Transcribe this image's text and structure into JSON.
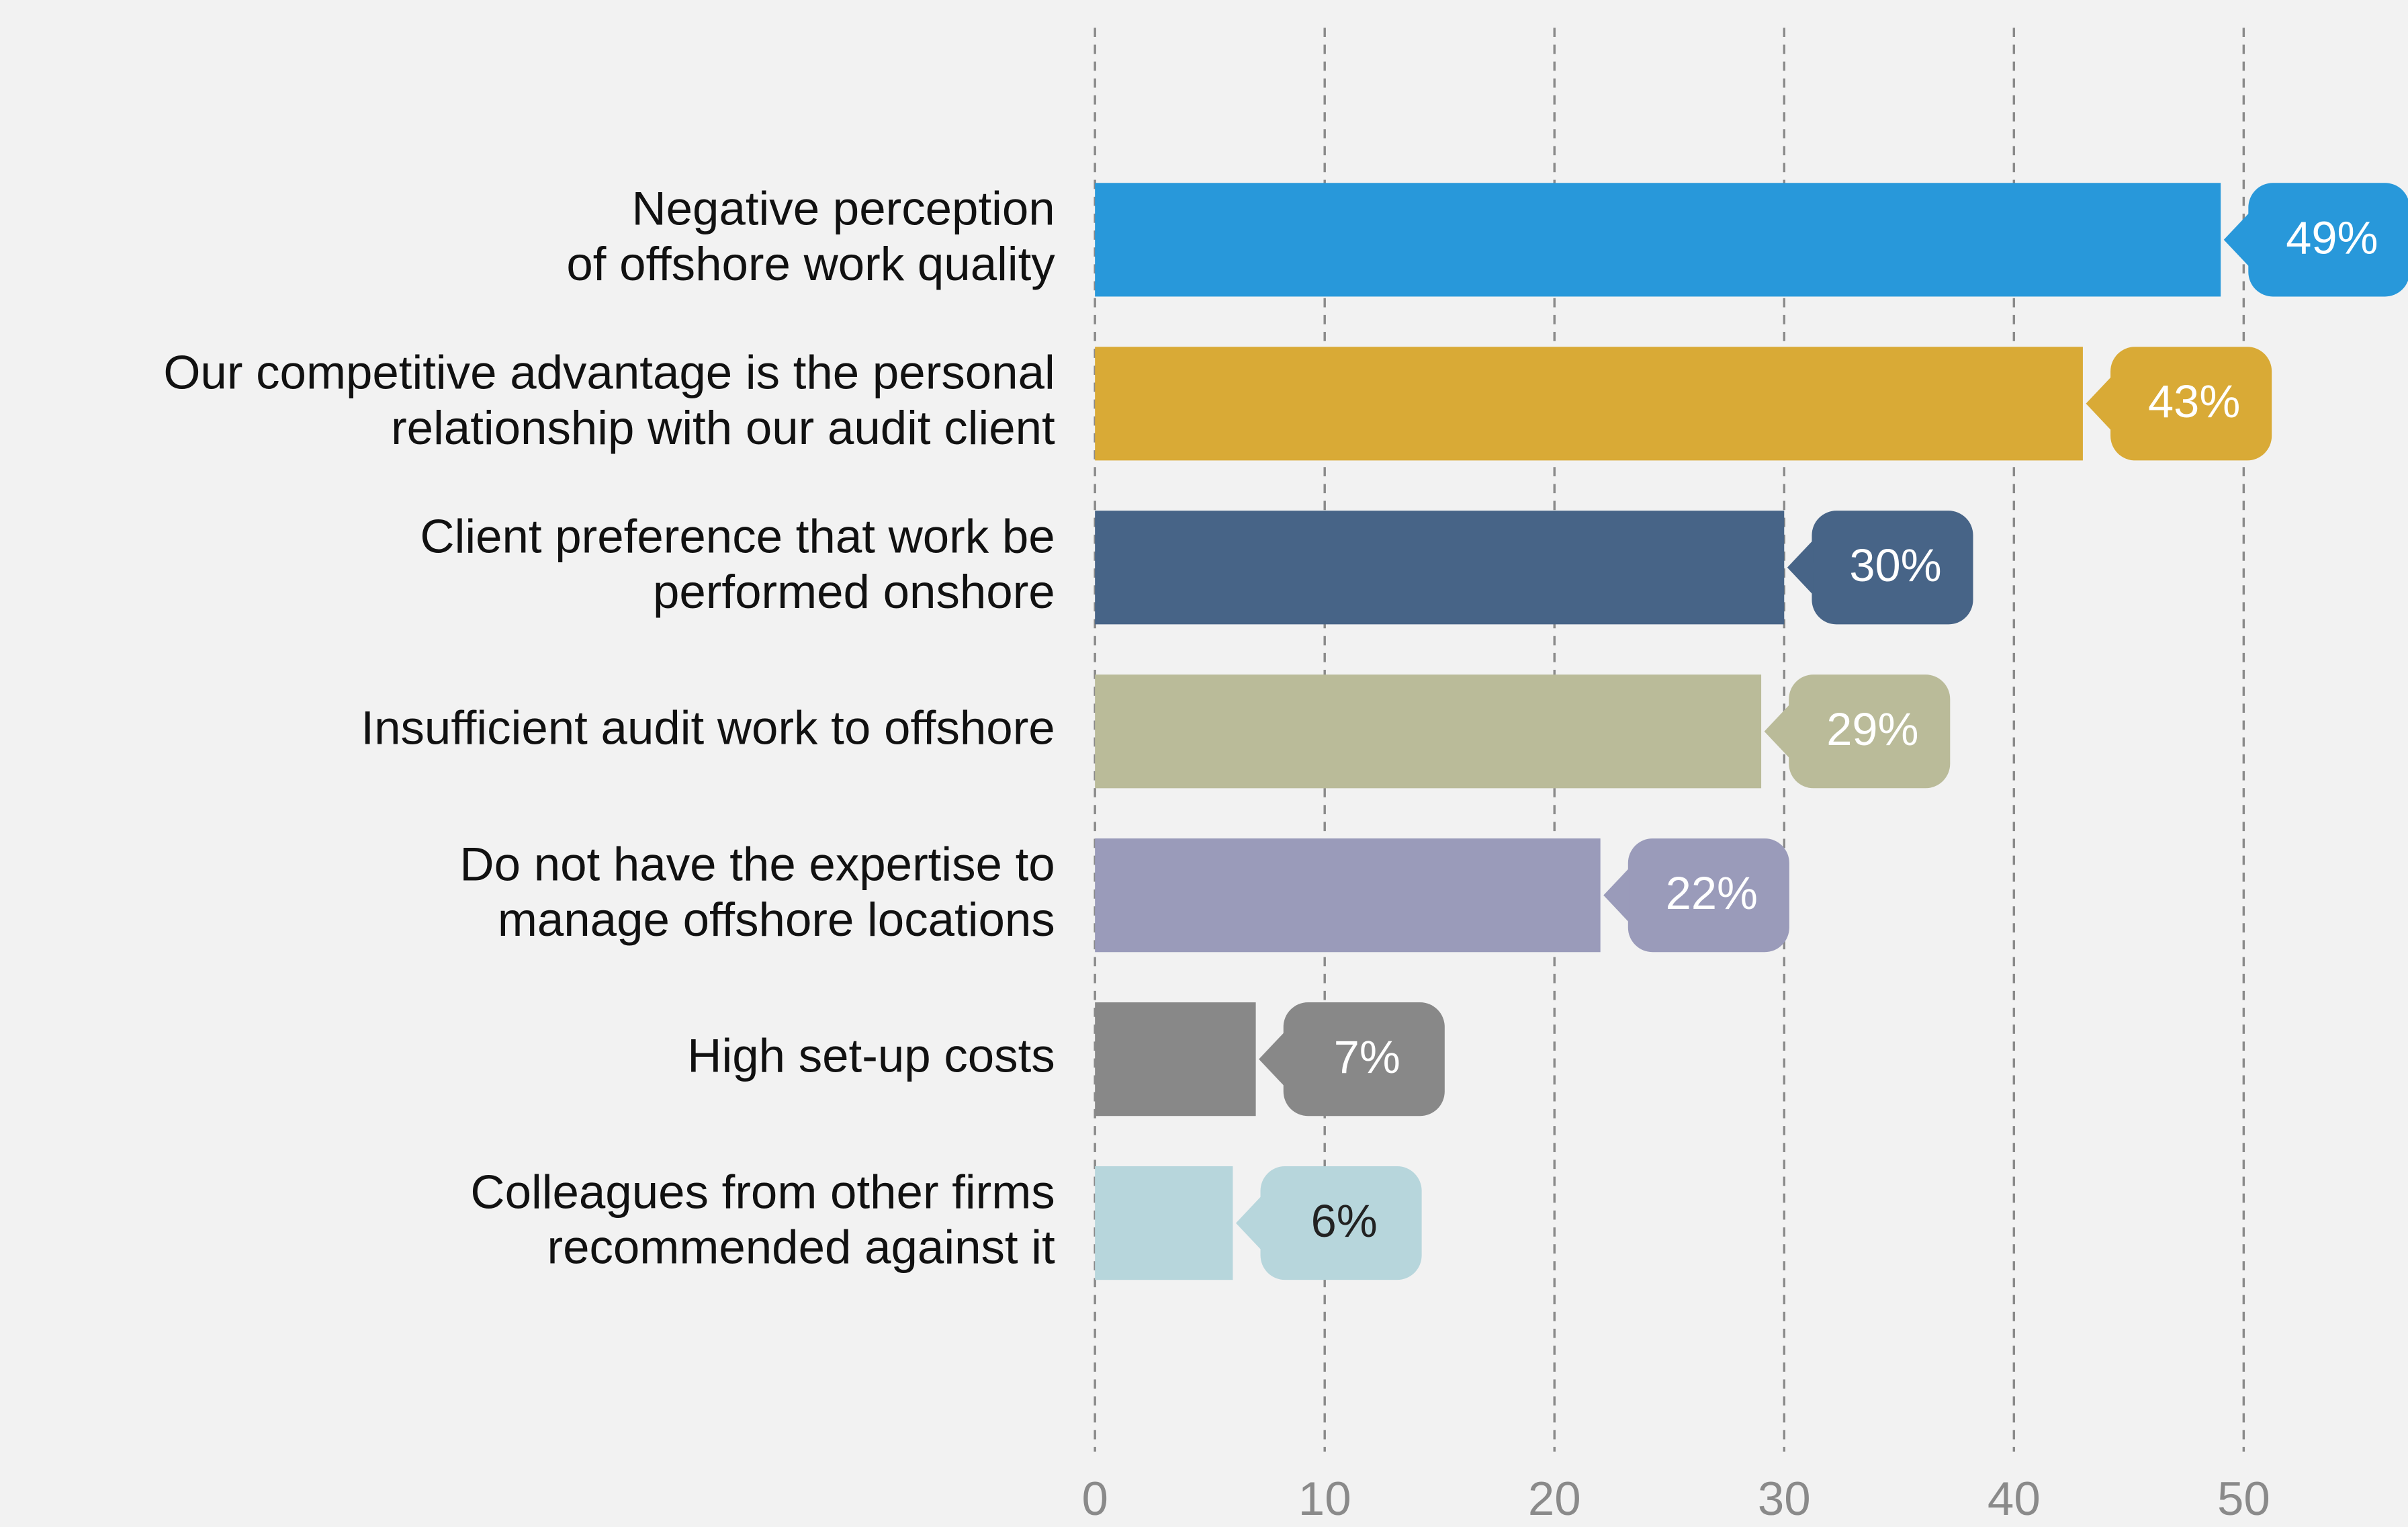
{
  "chart_data": {
    "type": "barh",
    "categories": [
      "Negative perception\nof offshore work quality",
      "Our competitive advantage is the personal\nrelationship with our audit client",
      "Client preference that work be\nperformed onshore",
      "Insufficient audit work to offshore",
      "Do not have the expertise to\nmanage offshore locations",
      "High set-up costs",
      "Colleagues from  other firms\nrecommended against it"
    ],
    "values": [
      49,
      43,
      30,
      29,
      22,
      7,
      6
    ],
    "value_labels": [
      "49%",
      "43%",
      "30%",
      "29%",
      "22%",
      "7%",
      "6%"
    ],
    "colors": [
      "#2898da",
      "#d9aa36",
      "#476487",
      "#babb99",
      "#9a9bba",
      "#888888",
      "#b7d6dc"
    ],
    "label_colors": [
      "#ffffff",
      "#ffffff",
      "#ffffff",
      "#ffffff",
      "#ffffff",
      "#ffffff",
      "#222222"
    ],
    "xlim": [
      0,
      50
    ],
    "xticks": [
      0,
      10,
      20,
      30,
      40,
      50
    ],
    "grid": true
  }
}
